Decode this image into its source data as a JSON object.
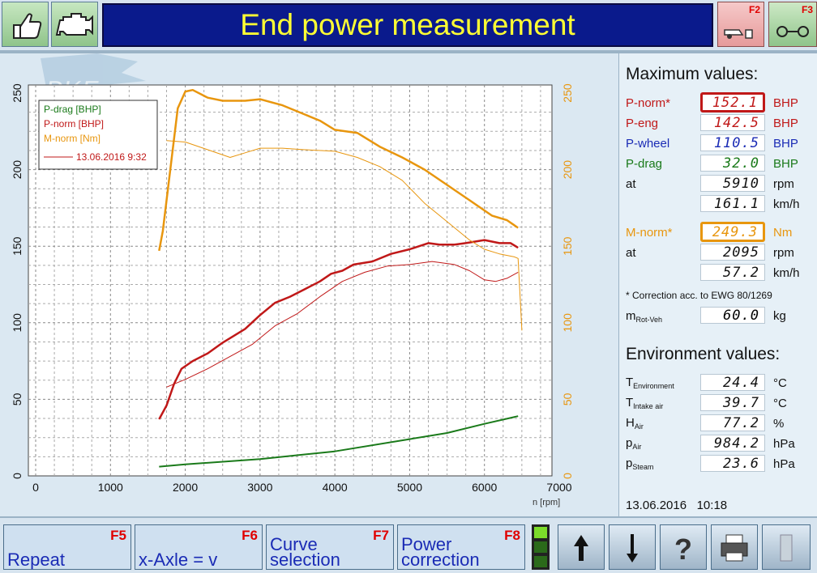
{
  "window": {
    "title": "End power measurement"
  },
  "top_buttons": [
    {
      "name": "thumbs-up-icon"
    },
    {
      "name": "engine-icon"
    },
    {
      "key": "F2",
      "name": "dyno-vehicle-icon"
    },
    {
      "key": "F3",
      "name": "rollers-icon"
    }
  ],
  "watermark": {
    "text": "PKE"
  },
  "colors": {
    "p_drag": "#1a7a1a",
    "p_norm": "#c01818",
    "m_norm": "#e8960e",
    "p_wheel": "#1a2bb5",
    "title_bg": "#0a1a8c",
    "title_fg": "#ffff33"
  },
  "chart_data": {
    "type": "line",
    "x_axis": {
      "label": "n [rpm]",
      "min": 0,
      "max": 7000,
      "ticks": [
        "0",
        "1000",
        "2000",
        "3000",
        "4000",
        "5000",
        "6000",
        "7000"
      ]
    },
    "y_left": {
      "min": 0,
      "max": 250,
      "ticks": [
        "0",
        "50",
        "100",
        "150",
        "200",
        "250"
      ]
    },
    "y_right": {
      "min": 0,
      "max": 250,
      "ticks": [
        "0",
        "50",
        "100",
        "150",
        "200",
        "250"
      ]
    },
    "grid": true,
    "legend_placement": "top-left",
    "legend": [
      {
        "label": "P-drag [BHP]",
        "color": "#1a7a1a"
      },
      {
        "label": "P-norm [BHP]",
        "color": "#c01818"
      },
      {
        "label": "M-norm [Nm]",
        "color": "#e8960e"
      },
      {
        "label": "13.06.2016 9:32",
        "color": "#c01818",
        "line": true
      }
    ],
    "series": [
      {
        "key": "p_drag",
        "color": "#1a7a1a",
        "width": 2,
        "points": [
          [
            1650,
            6
          ],
          [
            2000,
            7.5
          ],
          [
            3000,
            11
          ],
          [
            4000,
            16
          ],
          [
            5000,
            24
          ],
          [
            5500,
            28
          ],
          [
            6000,
            34
          ],
          [
            6450,
            39
          ]
        ]
      },
      {
        "key": "p_norm",
        "color": "#c01818",
        "width": 2.5,
        "points": [
          [
            1650,
            37
          ],
          [
            1750,
            46
          ],
          [
            1850,
            60
          ],
          [
            1950,
            70
          ],
          [
            2100,
            75
          ],
          [
            2300,
            80
          ],
          [
            2500,
            87
          ],
          [
            2800,
            96
          ],
          [
            3000,
            105
          ],
          [
            3200,
            113
          ],
          [
            3400,
            117
          ],
          [
            3600,
            122
          ],
          [
            3800,
            127
          ],
          [
            3950,
            132
          ],
          [
            4100,
            134
          ],
          [
            4250,
            138
          ],
          [
            4500,
            140
          ],
          [
            4750,
            145
          ],
          [
            5000,
            148
          ],
          [
            5250,
            152
          ],
          [
            5400,
            151
          ],
          [
            5600,
            151
          ],
          [
            5750,
            152
          ],
          [
            6000,
            154
          ],
          [
            6200,
            152
          ],
          [
            6350,
            152
          ],
          [
            6450,
            149
          ]
        ]
      },
      {
        "key": "p_norm_ref",
        "color": "#c01818",
        "width": 1,
        "points": [
          [
            1750,
            58
          ],
          [
            2000,
            63
          ],
          [
            2300,
            70
          ],
          [
            2600,
            78
          ],
          [
            2900,
            86
          ],
          [
            3200,
            98
          ],
          [
            3500,
            106
          ],
          [
            3800,
            117
          ],
          [
            4100,
            127
          ],
          [
            4400,
            133
          ],
          [
            4700,
            137
          ],
          [
            5000,
            138
          ],
          [
            5300,
            140
          ],
          [
            5600,
            138
          ],
          [
            5800,
            134
          ],
          [
            6000,
            128
          ],
          [
            6150,
            127
          ],
          [
            6300,
            129
          ],
          [
            6450,
            133
          ]
        ]
      },
      {
        "key": "m_norm",
        "color": "#e8960e",
        "width": 2.5,
        "points": [
          [
            1650,
            147
          ],
          [
            1700,
            160
          ],
          [
            1800,
            200
          ],
          [
            1900,
            240
          ],
          [
            2000,
            251
          ],
          [
            2100,
            252
          ],
          [
            2300,
            247
          ],
          [
            2500,
            245
          ],
          [
            2800,
            245
          ],
          [
            3000,
            246
          ],
          [
            3300,
            242
          ],
          [
            3600,
            236
          ],
          [
            3800,
            232
          ],
          [
            4000,
            226
          ],
          [
            4300,
            224
          ],
          [
            4600,
            215
          ],
          [
            4900,
            208
          ],
          [
            5200,
            200
          ],
          [
            5500,
            190
          ],
          [
            5800,
            180
          ],
          [
            6100,
            170
          ],
          [
            6300,
            167
          ],
          [
            6450,
            162
          ]
        ]
      },
      {
        "key": "m_norm_ref",
        "color": "#e8960e",
        "width": 1,
        "points": [
          [
            1750,
            219
          ],
          [
            2000,
            218
          ],
          [
            2300,
            213
          ],
          [
            2600,
            208
          ],
          [
            2800,
            211
          ],
          [
            3000,
            214
          ],
          [
            3300,
            214
          ],
          [
            3600,
            213
          ],
          [
            4000,
            212
          ],
          [
            4300,
            208
          ],
          [
            4600,
            202
          ],
          [
            4900,
            193
          ],
          [
            5200,
            178
          ],
          [
            5500,
            166
          ],
          [
            5800,
            154
          ],
          [
            6000,
            148
          ],
          [
            6200,
            145
          ],
          [
            6400,
            143
          ],
          [
            6450,
            142
          ],
          [
            6500,
            95
          ]
        ]
      }
    ]
  },
  "max_values": {
    "title": "Maximum values:",
    "rows": [
      {
        "label": "P-norm*",
        "value": "152.1",
        "unit": "BHP",
        "color": "#c01818",
        "highlight": "#c01818"
      },
      {
        "label": "P-eng",
        "value": "142.5",
        "unit": "BHP",
        "color": "#c01818"
      },
      {
        "label": "P-wheel",
        "value": "110.5",
        "unit": "BHP",
        "color": "#1a2bb5"
      },
      {
        "label": "P-drag",
        "value": "32.0",
        "unit": "BHP",
        "color": "#1a7a1a"
      },
      {
        "label": "at",
        "value": "5910",
        "unit": "rpm",
        "color": "#111111"
      },
      {
        "label": "",
        "value": "161.1",
        "unit": "km/h",
        "color": "#111111"
      },
      {
        "label": "M-norm*",
        "value": "249.3",
        "unit": "Nm",
        "color": "#e8960e",
        "highlight": "#e8960e"
      },
      {
        "label": "at",
        "value": "2095",
        "unit": "rpm",
        "color": "#111111"
      },
      {
        "label": "",
        "value": "57.2",
        "unit": "km/h",
        "color": "#111111"
      }
    ],
    "correction_note": "* Correction acc. to EWG 80/1269",
    "mrot": {
      "label": "m",
      "sub": "Rot-Veh",
      "value": "60.0",
      "unit": "kg"
    }
  },
  "environment": {
    "title": "Environment values:",
    "rows": [
      {
        "label": "T",
        "sub": "Environment",
        "value": "24.4",
        "unit": "°C"
      },
      {
        "label": "T",
        "sub": "Intake air",
        "value": "39.7",
        "unit": "°C"
      },
      {
        "label": "H",
        "sub": "Air",
        "value": "77.2",
        "unit": "%"
      },
      {
        "label": "p",
        "sub": "Air",
        "value": "984.2",
        "unit": "hPa"
      },
      {
        "label": "p",
        "sub": "Steam",
        "value": "23.6",
        "unit": "hPa"
      }
    ]
  },
  "footer": {
    "date": "13.06.2016",
    "time": "10:18"
  },
  "fkeys": [
    {
      "key": "F5",
      "label": "Repeat"
    },
    {
      "key": "F6",
      "label": "x-Axle = v"
    },
    {
      "key": "F7",
      "label": "Curve selection"
    },
    {
      "key": "F8",
      "label": "Power correction"
    }
  ]
}
